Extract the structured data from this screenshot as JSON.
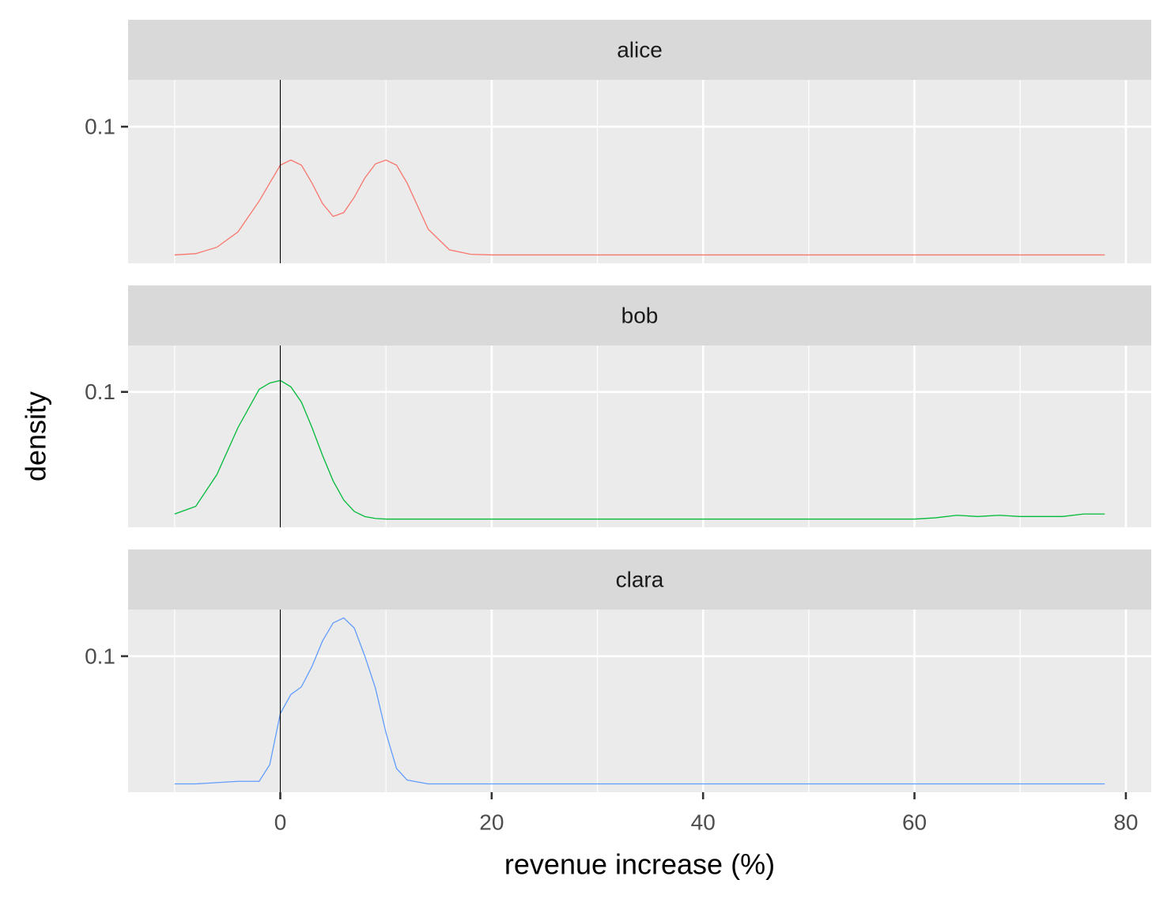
{
  "chart_data": {
    "type": "density",
    "xlabel": "revenue increase (%)",
    "ylabel": "density",
    "x": [
      -10,
      -8,
      -6,
      -4,
      -2,
      -1,
      0,
      1,
      2,
      3,
      4,
      5,
      6,
      7,
      8,
      9,
      10,
      11,
      12,
      14,
      16,
      18,
      20,
      25,
      30,
      35,
      40,
      45,
      50,
      55,
      60,
      62,
      64,
      66,
      68,
      70,
      72,
      74,
      76,
      78
    ],
    "series": [
      {
        "name": "alice",
        "color": "#F8766D",
        "values": [
          0,
          0.001,
          0.006,
          0.018,
          0.042,
          0.056,
          0.07,
          0.074,
          0.07,
          0.056,
          0.04,
          0.03,
          0.033,
          0.045,
          0.06,
          0.071,
          0.074,
          0.07,
          0.056,
          0.02,
          0.004,
          0.0005,
          0,
          0,
          0,
          0,
          0,
          0,
          0,
          0,
          0,
          0,
          0,
          0,
          0,
          0,
          0,
          0,
          0,
          0
        ]
      },
      {
        "name": "bob",
        "color": "#00BA38",
        "values": [
          0.004,
          0.01,
          0.035,
          0.072,
          0.102,
          0.107,
          0.109,
          0.104,
          0.092,
          0.072,
          0.05,
          0.03,
          0.015,
          0.006,
          0.002,
          0.0005,
          0,
          0,
          0,
          0,
          0,
          0,
          0,
          0,
          0,
          0,
          0,
          0,
          0,
          0,
          0,
          0.001,
          0.003,
          0.002,
          0.003,
          0.002,
          0.002,
          0.002,
          0.004,
          0.004
        ]
      },
      {
        "name": "clara",
        "color": "#619CFF",
        "values": [
          0,
          0,
          0.001,
          0.002,
          0.002,
          0.015,
          0.055,
          0.07,
          0.076,
          0.092,
          0.112,
          0.126,
          0.13,
          0.122,
          0.1,
          0.075,
          0.04,
          0.012,
          0.003,
          0,
          0,
          0,
          0,
          0,
          0,
          0,
          0,
          0,
          0,
          0,
          0,
          0,
          0,
          0,
          0,
          0,
          0,
          0,
          0,
          0
        ]
      }
    ],
    "vline": 0,
    "xlim": [
      -14.4,
      82.4
    ],
    "xticks": [
      0,
      20,
      40,
      60,
      80
    ],
    "x_minor_ticks": [
      -10,
      10,
      30,
      50,
      70
    ],
    "ylim": [
      -0.0065,
      0.1365
    ],
    "yticks": [
      0.1
    ],
    "grid": true
  }
}
